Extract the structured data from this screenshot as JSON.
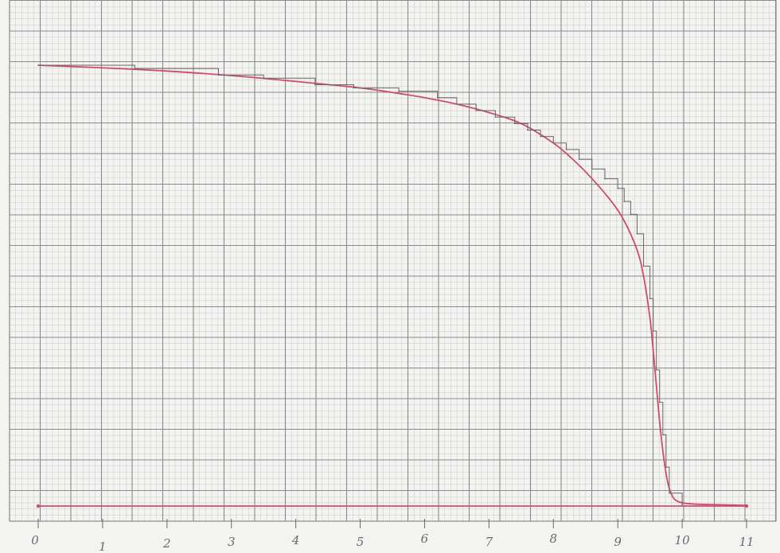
{
  "chart_data": {
    "type": "line",
    "title": "",
    "xlabel": "",
    "ylabel": "",
    "xlim": [
      0,
      11
    ],
    "ylim": [
      0,
      7
    ],
    "grid": true,
    "x_tick_labels": [
      "0",
      "1",
      "2",
      "3",
      "4",
      "5",
      "6",
      "7",
      "8",
      "9",
      "10",
      "11"
    ],
    "colors": {
      "paper": "#f3f3f1",
      "grid_major": "#8a8a8a",
      "grid_minor": "#c9c9c9",
      "curve": "#cf4a72",
      "steps": "#666666",
      "tick_label": "#6a6a6a"
    },
    "series": [
      {
        "style": "smooth-curve",
        "x": [
          0.0,
          1.0,
          2.0,
          3.0,
          4.0,
          5.0,
          5.5,
          6.0,
          6.5,
          7.0,
          7.5,
          8.0,
          8.3,
          8.6,
          8.9,
          9.1,
          9.3,
          9.4,
          9.5,
          9.55,
          9.6,
          9.65,
          9.7,
          9.75,
          9.8,
          9.85,
          9.9,
          10.0,
          10.2,
          10.6,
          11.0
        ],
        "y": [
          6.8,
          6.76,
          6.71,
          6.64,
          6.55,
          6.45,
          6.38,
          6.3,
          6.2,
          6.07,
          5.9,
          5.6,
          5.35,
          5.05,
          4.7,
          4.4,
          3.95,
          3.55,
          2.9,
          2.4,
          1.85,
          1.3,
          0.85,
          0.5,
          0.27,
          0.15,
          0.09,
          0.05,
          0.03,
          0.02,
          0.01
        ]
      },
      {
        "style": "steps",
        "x": [
          0.0,
          0.3,
          1.5,
          2.8,
          3.5,
          4.3,
          4.9,
          5.6,
          6.2,
          6.5,
          6.8,
          7.1,
          7.4,
          7.6,
          7.8,
          8.0,
          8.2,
          8.4,
          8.6,
          8.8,
          9.0,
          9.1,
          9.2,
          9.3,
          9.4,
          9.5,
          9.55,
          9.6,
          9.65,
          9.7,
          9.75,
          9.8,
          10.0
        ],
        "y": [
          6.8,
          6.8,
          6.75,
          6.65,
          6.6,
          6.5,
          6.45,
          6.4,
          6.3,
          6.2,
          6.1,
          6.0,
          5.9,
          5.8,
          5.7,
          5.6,
          5.5,
          5.35,
          5.2,
          5.05,
          4.9,
          4.7,
          4.5,
          4.2,
          3.7,
          3.2,
          2.7,
          2.1,
          1.6,
          1.1,
          0.6,
          0.2,
          0.02
        ]
      },
      {
        "style": "baseline",
        "x": [
          0,
          11
        ],
        "y": [
          0,
          0
        ]
      }
    ]
  }
}
